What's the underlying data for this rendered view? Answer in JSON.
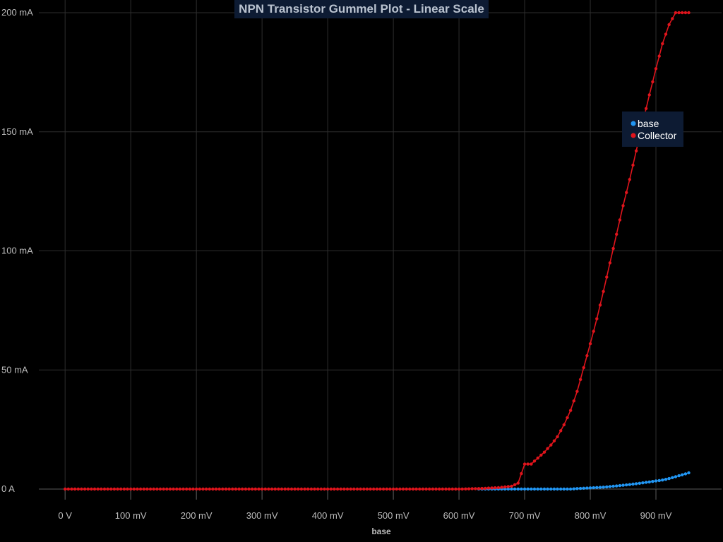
{
  "chart_data": {
    "type": "line",
    "title": "NPN Transistor Gummel Plot - Linear Scale",
    "xlabel": "base",
    "ylabel": "",
    "xlim": [
      -0.04,
      1.0
    ],
    "ylim": [
      0,
      0.2
    ],
    "x_ticks": [
      {
        "value": 0.0,
        "label": "0 V"
      },
      {
        "value": 0.1,
        "label": "100 mV"
      },
      {
        "value": 0.2,
        "label": "200 mV"
      },
      {
        "value": 0.3,
        "label": "300 mV"
      },
      {
        "value": 0.4,
        "label": "400 mV"
      },
      {
        "value": 0.5,
        "label": "500 mV"
      },
      {
        "value": 0.6,
        "label": "600 mV"
      },
      {
        "value": 0.7,
        "label": "700 mV"
      },
      {
        "value": 0.8,
        "label": "800 mV"
      },
      {
        "value": 0.9,
        "label": "900 mV"
      }
    ],
    "y_ticks": [
      {
        "value": 0.0,
        "label": "0 A"
      },
      {
        "value": 0.05,
        "label": "50 mA"
      },
      {
        "value": 0.1,
        "label": "100 mA"
      },
      {
        "value": 0.15,
        "label": "150 mA"
      },
      {
        "value": 0.2,
        "label": "200 mA"
      }
    ],
    "grid": true,
    "legend_position": "top-right",
    "series": [
      {
        "name": "base",
        "color": "#2196f3",
        "points": [
          [
            0.63,
            0.0
          ],
          [
            0.65,
            0.0
          ],
          [
            0.67,
            0.0
          ],
          [
            0.69,
            0.0
          ],
          [
            0.71,
            0.0
          ],
          [
            0.73,
            0.0
          ],
          [
            0.75,
            0.0
          ],
          [
            0.77,
            0.0
          ],
          [
            0.78,
            0.0002
          ],
          [
            0.8,
            0.0005
          ],
          [
            0.82,
            0.0008
          ],
          [
            0.84,
            0.0013
          ],
          [
            0.86,
            0.0019
          ],
          [
            0.88,
            0.0026
          ],
          [
            0.9,
            0.0034
          ],
          [
            0.91,
            0.0038
          ],
          [
            0.92,
            0.0044
          ],
          [
            0.93,
            0.0052
          ],
          [
            0.94,
            0.006
          ],
          [
            0.95,
            0.0068
          ]
        ]
      },
      {
        "name": "Collector",
        "color": "#e0141c",
        "points": [
          [
            0.0,
            0.0
          ],
          [
            0.1,
            0.0
          ],
          [
            0.2,
            0.0
          ],
          [
            0.3,
            0.0
          ],
          [
            0.4,
            0.0
          ],
          [
            0.5,
            0.0
          ],
          [
            0.6,
            0.0
          ],
          [
            0.63,
            0.0002
          ],
          [
            0.66,
            0.0006
          ],
          [
            0.68,
            0.0012
          ],
          [
            0.69,
            0.0025
          ],
          [
            0.7,
            0.0105
          ],
          [
            0.71,
            0.0105
          ],
          [
            0.72,
            0.013
          ],
          [
            0.73,
            0.0155
          ],
          [
            0.74,
            0.0185
          ],
          [
            0.75,
            0.022
          ],
          [
            0.76,
            0.027
          ],
          [
            0.77,
            0.033
          ],
          [
            0.78,
            0.041
          ],
          [
            0.79,
            0.051
          ],
          [
            0.8,
            0.061
          ],
          [
            0.81,
            0.0715
          ],
          [
            0.82,
            0.083
          ],
          [
            0.83,
            0.095
          ],
          [
            0.84,
            0.107
          ],
          [
            0.85,
            0.119
          ],
          [
            0.86,
            0.13
          ],
          [
            0.87,
            0.142
          ],
          [
            0.88,
            0.154
          ],
          [
            0.89,
            0.1655
          ],
          [
            0.9,
            0.1765
          ],
          [
            0.91,
            0.187
          ],
          [
            0.92,
            0.195
          ],
          [
            0.93,
            0.2
          ],
          [
            0.95,
            0.2
          ]
        ]
      }
    ]
  }
}
